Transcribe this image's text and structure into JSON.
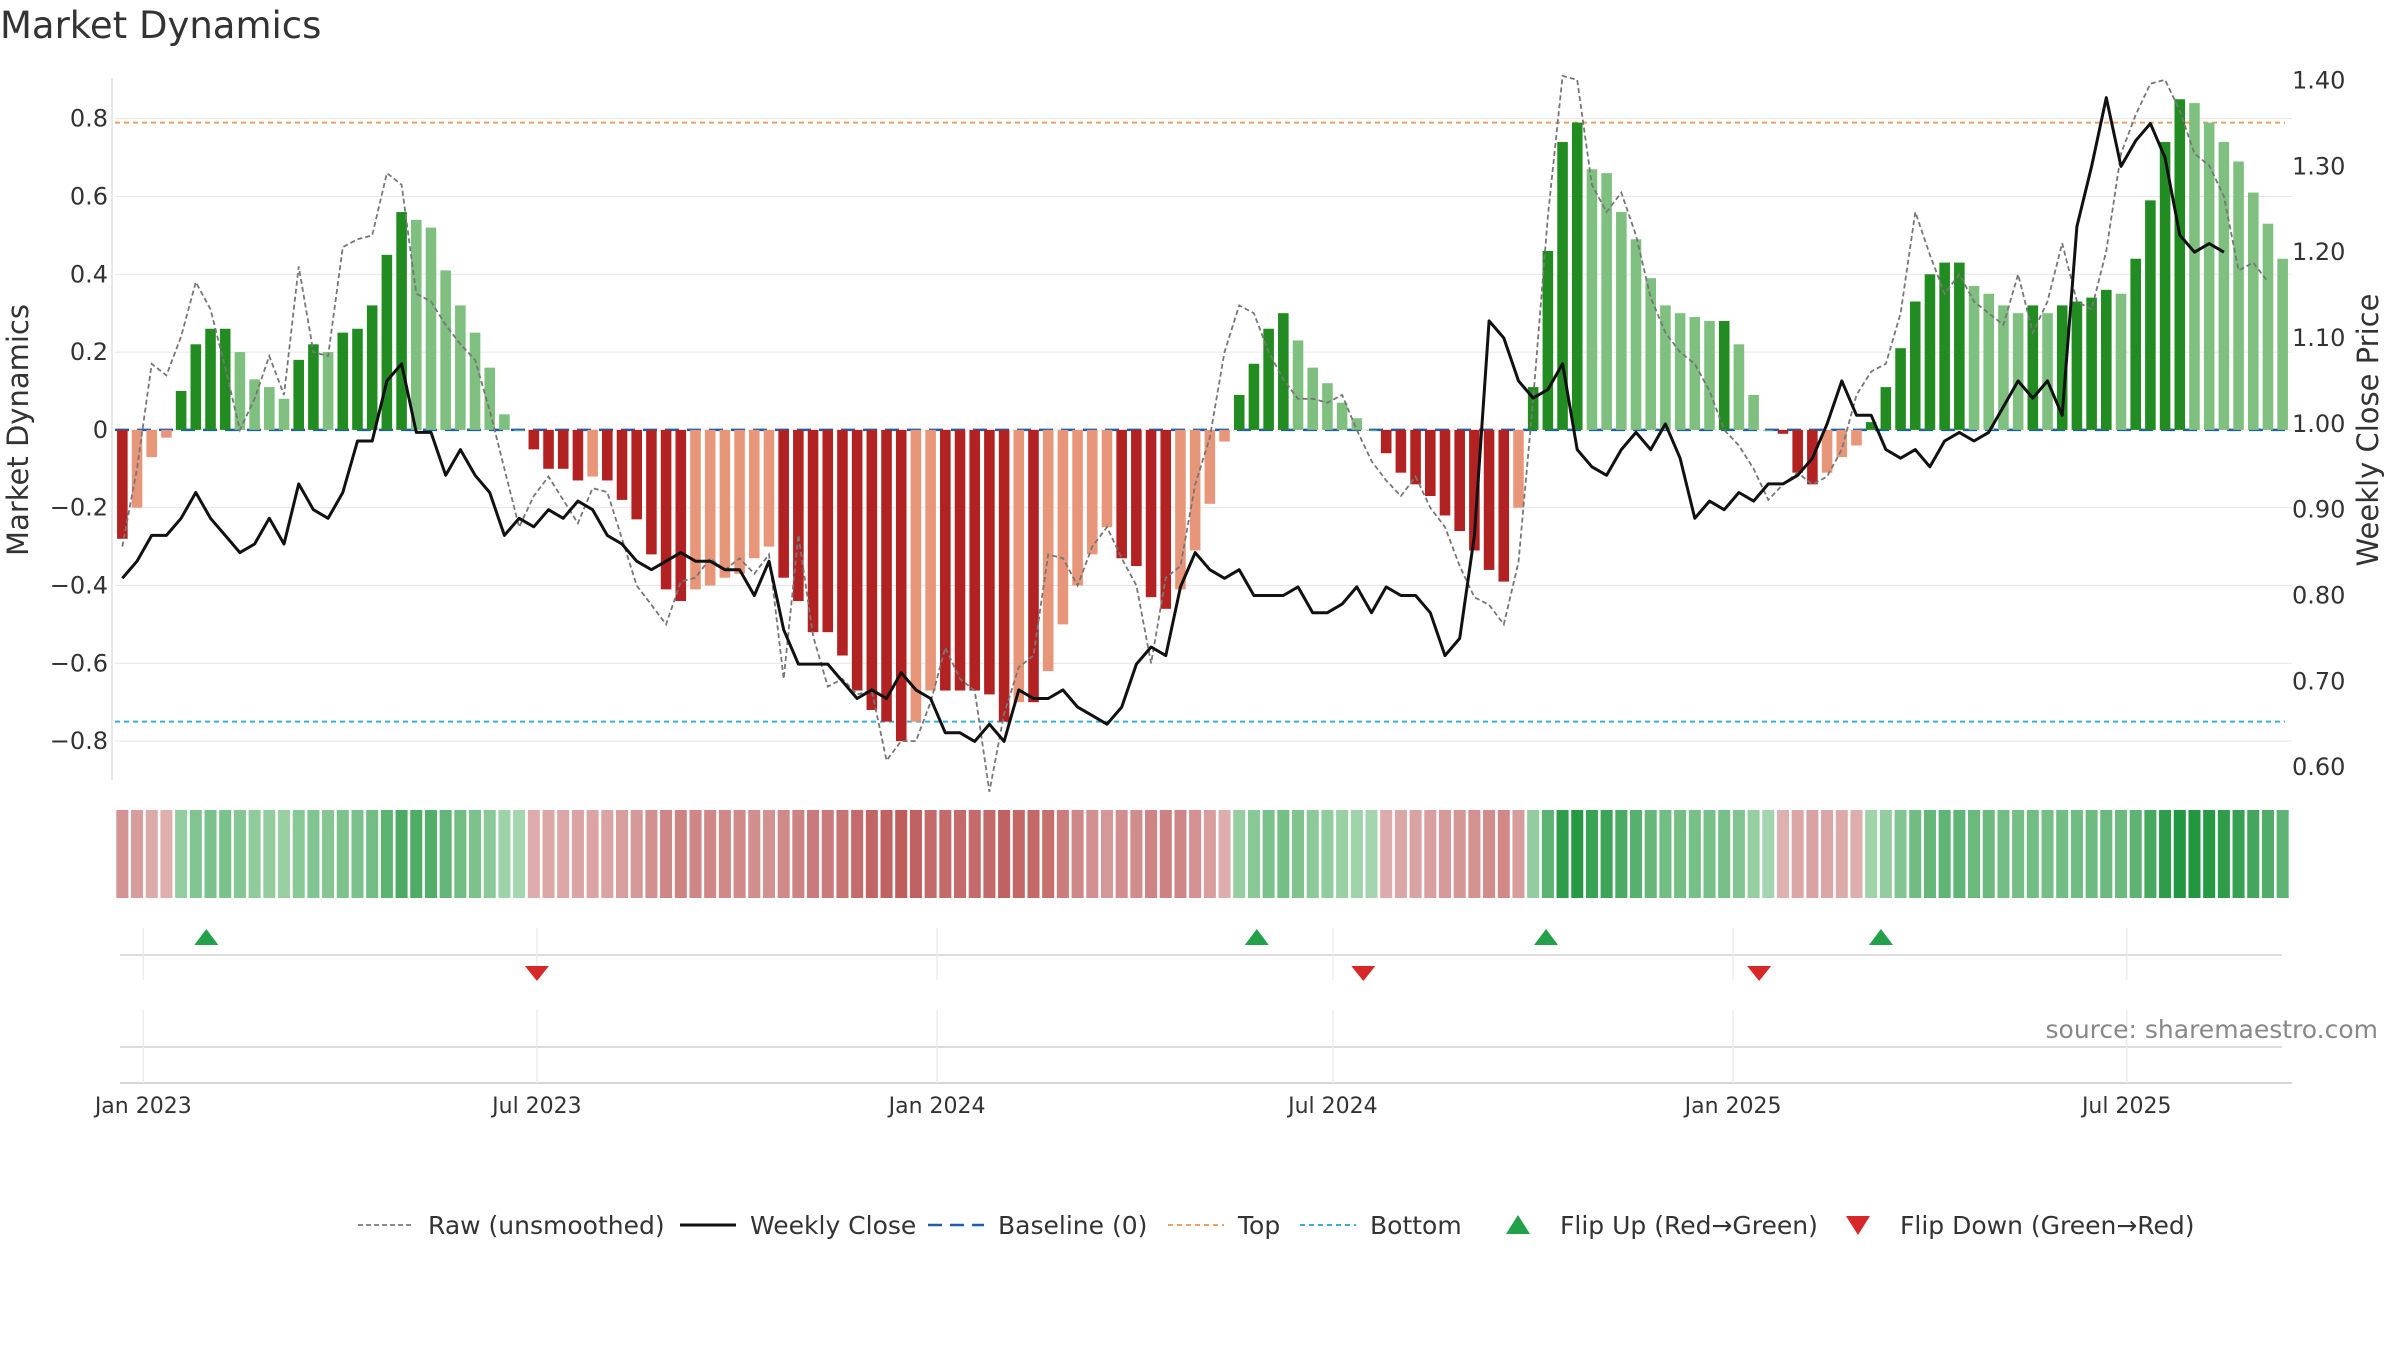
{
  "title": "Market Dynamics",
  "source": "source: sharemaestro.com",
  "colors": {
    "strong_green": "#228b22",
    "light_green": "#7fbf7f",
    "strong_red": "#b22222",
    "light_red": "#e8967a",
    "raw": "#777777",
    "close": "#111111",
    "baseline": "#1f5fa8",
    "top": "#f0a060",
    "bottom": "#3ab0d0",
    "flip_up": "#22a04a",
    "flip_down": "#d62828"
  },
  "chart_data": {
    "type": "bar",
    "title": "Market Dynamics",
    "ylabel": "Market Dynamics",
    "y2label": "Weekly Close Price",
    "ylim": [
      -0.9,
      0.92
    ],
    "y2lim": [
      0.585,
      1.41
    ],
    "yticks": [
      "0.8",
      "0.6",
      "0.4",
      "0.2",
      "0",
      "−0.2",
      "−0.4",
      "−0.6",
      "−0.8"
    ],
    "y2ticks": [
      "1.40",
      "1.30",
      "1.20",
      "1.10",
      "1.00",
      "0.90",
      "0.80",
      "0.70",
      "0.60"
    ],
    "x_start": "2022-12-19",
    "x_end": "2025-09-15",
    "xticks": [
      {
        "date": "2023-01-01",
        "label": "Jan 2023"
      },
      {
        "date": "2023-07-01",
        "label": "Jul 2023"
      },
      {
        "date": "2024-01-01",
        "label": "Jan 2024"
      },
      {
        "date": "2024-07-01",
        "label": "Jul 2024"
      },
      {
        "date": "2025-01-01",
        "label": "Jan 2025"
      },
      {
        "date": "2025-07-01",
        "label": "Jul 2025"
      }
    ],
    "first_week": "2022-12-19",
    "top_level": 0.79,
    "bottom_level": -0.75,
    "baseline": 0,
    "grid": true,
    "series": [
      {
        "name": "Market Dynamics",
        "kind": "bar",
        "values": [
          -0.28,
          -0.2,
          -0.07,
          -0.02,
          0.1,
          0.22,
          0.26,
          0.26,
          0.2,
          0.13,
          0.11,
          0.08,
          0.18,
          0.22,
          0.2,
          0.25,
          0.26,
          0.32,
          0.45,
          0.56,
          0.54,
          0.52,
          0.41,
          0.32,
          0.25,
          0.16,
          0.04,
          0.0,
          -0.05,
          -0.1,
          -0.1,
          -0.13,
          -0.12,
          -0.13,
          -0.18,
          -0.23,
          -0.32,
          -0.41,
          -0.44,
          -0.41,
          -0.4,
          -0.38,
          -0.37,
          -0.33,
          -0.3,
          -0.38,
          -0.44,
          -0.52,
          -0.52,
          -0.58,
          -0.67,
          -0.72,
          -0.75,
          -0.8,
          -0.75,
          -0.67,
          -0.67,
          -0.67,
          -0.67,
          -0.68,
          -0.75,
          -0.7,
          -0.7,
          -0.62,
          -0.5,
          -0.4,
          -0.32,
          -0.25,
          -0.33,
          -0.35,
          -0.43,
          -0.46,
          -0.41,
          -0.31,
          -0.19,
          -0.03,
          0.09,
          0.17,
          0.26,
          0.3,
          0.23,
          0.16,
          0.12,
          0.07,
          0.03,
          0.0,
          -0.06,
          -0.11,
          -0.14,
          -0.17,
          -0.22,
          -0.26,
          -0.31,
          -0.36,
          -0.39,
          -0.2,
          0.11,
          0.46,
          0.74,
          0.79,
          0.67,
          0.66,
          0.56,
          0.49,
          0.39,
          0.32,
          0.3,
          0.29,
          0.28,
          0.28,
          0.22,
          0.09,
          0.0,
          -0.01,
          -0.11,
          -0.14,
          -0.11,
          -0.07,
          -0.04,
          0.02,
          0.11,
          0.21,
          0.33,
          0.4,
          0.43,
          0.43,
          0.37,
          0.35,
          0.32,
          0.3,
          0.32,
          0.3,
          0.32,
          0.33,
          0.34,
          0.36,
          0.35,
          0.44,
          0.59,
          0.74,
          0.85,
          0.84,
          0.79,
          0.74,
          0.69,
          0.61,
          0.53,
          0.44
        ]
      },
      {
        "name": "Raw (unsmoothed)",
        "kind": "line",
        "values": [
          -0.3,
          -0.1,
          0.17,
          0.14,
          0.24,
          0.38,
          0.31,
          0.16,
          0.0,
          0.08,
          0.19,
          0.09,
          0.42,
          0.2,
          0.19,
          0.47,
          0.49,
          0.5,
          0.66,
          0.63,
          0.35,
          0.33,
          0.27,
          0.22,
          0.18,
          0.05,
          -0.1,
          -0.25,
          -0.17,
          -0.12,
          -0.18,
          -0.24,
          -0.15,
          -0.16,
          -0.28,
          -0.4,
          -0.45,
          -0.5,
          -0.39,
          -0.38,
          -0.33,
          -0.36,
          -0.33,
          -0.37,
          -0.32,
          -0.64,
          -0.27,
          -0.53,
          -0.66,
          -0.64,
          -0.68,
          -0.67,
          -0.85,
          -0.8,
          -0.8,
          -0.7,
          -0.56,
          -0.64,
          -0.67,
          -0.93,
          -0.73,
          -0.61,
          -0.58,
          -0.32,
          -0.33,
          -0.4,
          -0.3,
          -0.25,
          -0.33,
          -0.4,
          -0.6,
          -0.38,
          -0.35,
          -0.14,
          -0.02,
          0.2,
          0.32,
          0.3,
          0.2,
          0.13,
          0.08,
          0.08,
          0.07,
          0.09,
          0.0,
          -0.08,
          -0.13,
          -0.17,
          -0.12,
          -0.2,
          -0.25,
          -0.35,
          -0.43,
          -0.45,
          -0.5,
          -0.34,
          0.08,
          0.55,
          0.91,
          0.9,
          0.63,
          0.56,
          0.61,
          0.5,
          0.34,
          0.25,
          0.2,
          0.17,
          0.1,
          0.0,
          -0.04,
          -0.1,
          -0.18,
          -0.14,
          -0.11,
          -0.14,
          -0.12,
          -0.05,
          0.09,
          0.15,
          0.17,
          0.3,
          0.56,
          0.45,
          0.35,
          0.4,
          0.33,
          0.3,
          0.27,
          0.4,
          0.25,
          0.33,
          0.48,
          0.33,
          0.31,
          0.46,
          0.71,
          0.81,
          0.89,
          0.9,
          0.82,
          0.71,
          0.68,
          0.6,
          0.41,
          0.43,
          0.38
        ]
      },
      {
        "name": "Weekly Close",
        "kind": "line",
        "axis": "right",
        "values": [
          0.82,
          0.84,
          0.87,
          0.87,
          0.89,
          0.92,
          0.89,
          0.87,
          0.85,
          0.86,
          0.89,
          0.86,
          0.93,
          0.9,
          0.89,
          0.92,
          0.98,
          0.98,
          1.05,
          1.07,
          0.99,
          0.99,
          0.94,
          0.97,
          0.94,
          0.92,
          0.87,
          0.89,
          0.88,
          0.9,
          0.89,
          0.91,
          0.9,
          0.87,
          0.86,
          0.84,
          0.83,
          0.84,
          0.85,
          0.84,
          0.84,
          0.83,
          0.83,
          0.8,
          0.84,
          0.76,
          0.72,
          0.72,
          0.72,
          0.7,
          0.68,
          0.69,
          0.68,
          0.71,
          0.69,
          0.68,
          0.64,
          0.64,
          0.63,
          0.65,
          0.63,
          0.69,
          0.68,
          0.68,
          0.69,
          0.67,
          0.66,
          0.65,
          0.67,
          0.72,
          0.74,
          0.73,
          0.81,
          0.85,
          0.83,
          0.82,
          0.83,
          0.8,
          0.8,
          0.8,
          0.81,
          0.78,
          0.78,
          0.79,
          0.81,
          0.78,
          0.81,
          0.8,
          0.8,
          0.78,
          0.73,
          0.75,
          0.87,
          1.12,
          1.1,
          1.05,
          1.03,
          1.04,
          1.07,
          0.97,
          0.95,
          0.94,
          0.97,
          0.99,
          0.97,
          1.0,
          0.96,
          0.89,
          0.91,
          0.9,
          0.92,
          0.91,
          0.93,
          0.93,
          0.94,
          0.96,
          1.0,
          1.05,
          1.01,
          1.01,
          0.97,
          0.96,
          0.97,
          0.95,
          0.98,
          0.99,
          0.98,
          0.99,
          1.02,
          1.05,
          1.03,
          1.05,
          1.01,
          1.23,
          1.3,
          1.38,
          1.3,
          1.33,
          1.35,
          1.31,
          1.22,
          1.2,
          1.21,
          1.2
        ]
      }
    ],
    "flip_up_dates": [
      "2023-01-30",
      "2024-05-27",
      "2024-10-07",
      "2025-03-10"
    ],
    "flip_down_dates": [
      "2023-07-01",
      "2024-07-15",
      "2025-01-13"
    ],
    "legend_position": "bottom",
    "legend": [
      "Raw (unsmoothed)",
      "Weekly Close",
      "Baseline (0)",
      "Top",
      "Bottom",
      "Flip Up (Red→Green)",
      "Flip Down (Green→Red)"
    ]
  }
}
